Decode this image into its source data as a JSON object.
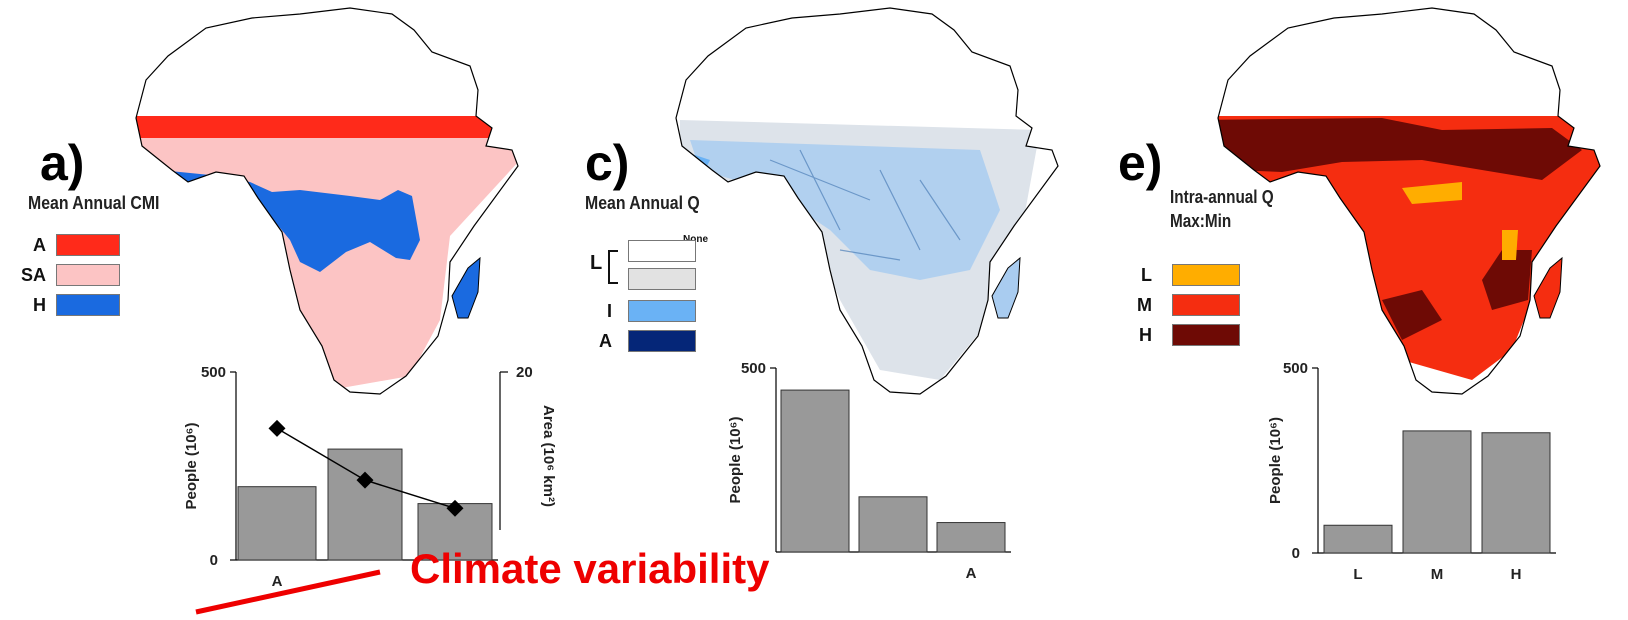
{
  "panels": [
    {
      "letter": "a)",
      "legend_title": "Mean Annual CMI",
      "legend": [
        {
          "label": "A",
          "color": "#ff2a1a"
        },
        {
          "label": "SA",
          "color": "#fcc4c4"
        },
        {
          "label": "H",
          "color": "#1a6ae0"
        }
      ]
    },
    {
      "letter": "c)",
      "legend_title": "Mean Annual Q",
      "legend_none": "None",
      "legend": [
        {
          "label": "",
          "color": "#ffffff"
        },
        {
          "label": "L",
          "color": "#e2e2e2"
        },
        {
          "label": "I",
          "color": "#6ab2f5"
        },
        {
          "label": "A",
          "color": "#052678"
        }
      ]
    },
    {
      "letter": "e)",
      "legend_title_lines": [
        "Intra-annual Q",
        "Max:Min"
      ],
      "legend": [
        {
          "label": "L",
          "color": "#ffad00"
        },
        {
          "label": "M",
          "color": "#f52d10"
        },
        {
          "label": "H",
          "color": "#6e0a05"
        }
      ]
    }
  ],
  "annotation": "Climate variability",
  "colors": {
    "bar": "#999999",
    "annotation": "#ee0000",
    "map_outline": "#000000"
  },
  "chart_data": [
    {
      "type": "bar",
      "categories": [
        "A",
        "",
        ""
      ],
      "values": [
        195,
        295,
        150
      ],
      "ylabel": "People (10⁶)",
      "ylim": [
        0,
        500
      ],
      "yticks": [
        "500",
        "0"
      ],
      "secondary": {
        "type": "line",
        "ylabel": "Area (10⁶ km²)",
        "ylim": [
          0,
          20
        ],
        "ytick": "20",
        "values": [
          14,
          8.5,
          5.5
        ]
      }
    },
    {
      "type": "bar",
      "categories": [
        "",
        "",
        "A"
      ],
      "values": [
        440,
        150,
        80
      ],
      "ylabel": "People (10⁶)",
      "ylim": [
        0,
        500
      ],
      "yticks": [
        "500"
      ]
    },
    {
      "type": "bar",
      "categories": [
        "L",
        "M",
        "H"
      ],
      "values": [
        75,
        330,
        325
      ],
      "ylabel": "People (10⁶)",
      "ylim": [
        0,
        500
      ],
      "yticks": [
        "500",
        "0"
      ]
    }
  ]
}
